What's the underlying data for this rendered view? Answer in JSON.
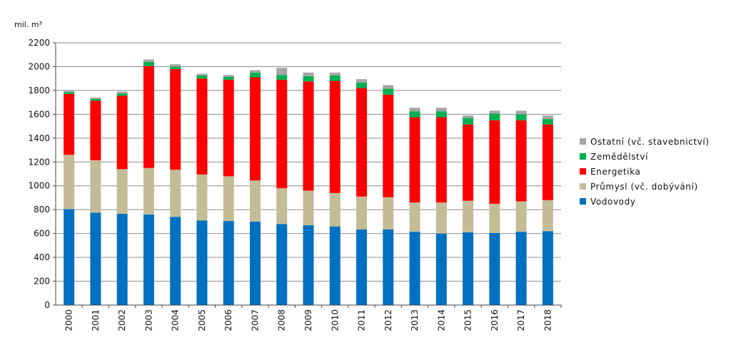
{
  "chart_data": {
    "type": "bar",
    "stacked": true,
    "ylabel": "mil. m³",
    "ylim": [
      0,
      2200
    ],
    "yticks": [
      0,
      200,
      400,
      600,
      800,
      1000,
      1200,
      1400,
      1600,
      1800,
      2000,
      2200
    ],
    "grid": true,
    "legend_position": "right",
    "categories": [
      "2000",
      "2001",
      "2002",
      "2003",
      "2004",
      "2005",
      "2006",
      "2007",
      "2008",
      "2009",
      "2010",
      "2011",
      "2012",
      "2013",
      "2014",
      "2015",
      "2016",
      "2017",
      "2018"
    ],
    "series": [
      {
        "name": "Vodovody",
        "color": "#0070c0",
        "values": [
          805,
          775,
          765,
          760,
          740,
          710,
          705,
          700,
          680,
          670,
          660,
          635,
          635,
          615,
          600,
          610,
          605,
          615,
          620
        ]
      },
      {
        "name": "Průmysl (vč. dobývání)",
        "color": "#c4bc96",
        "values": [
          455,
          440,
          375,
          390,
          395,
          385,
          375,
          345,
          300,
          290,
          280,
          275,
          270,
          245,
          260,
          265,
          245,
          255,
          260
        ]
      },
      {
        "name": "Energetika",
        "color": "#ff0000",
        "values": [
          510,
          500,
          615,
          855,
          845,
          805,
          810,
          865,
          910,
          915,
          940,
          910,
          860,
          715,
          715,
          640,
          700,
          680,
          635
        ]
      },
      {
        "name": "Zemědělství",
        "color": "#00b050",
        "values": [
          15,
          15,
          20,
          35,
          20,
          25,
          25,
          40,
          40,
          45,
          45,
          45,
          50,
          50,
          50,
          55,
          55,
          50,
          45
        ]
      },
      {
        "name": "Ostatní (vč. stavebnictví)",
        "color": "#a6a6a6",
        "values": [
          15,
          10,
          15,
          20,
          20,
          15,
          15,
          20,
          60,
          30,
          25,
          30,
          30,
          30,
          30,
          20,
          25,
          30,
          30
        ]
      }
    ],
    "legend_order": [
      4,
      3,
      2,
      1,
      0
    ]
  }
}
